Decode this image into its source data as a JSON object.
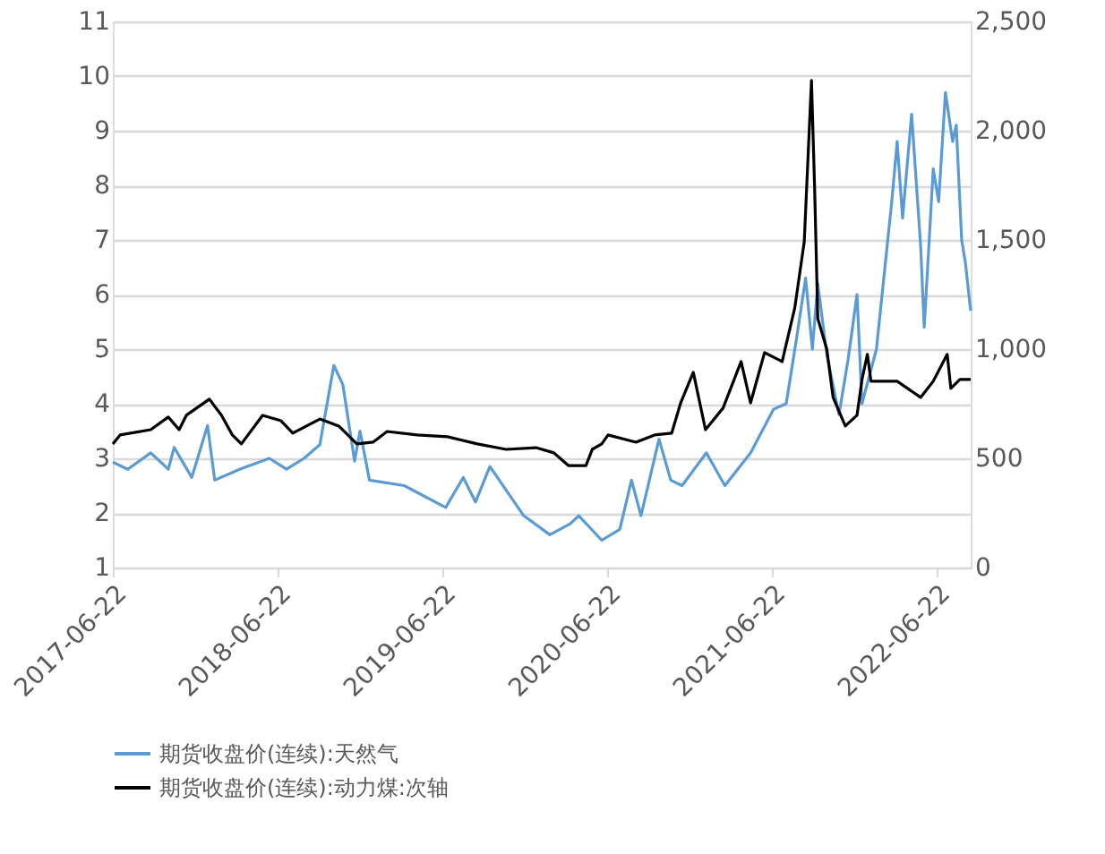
{
  "chart_data": {
    "type": "line",
    "xlim": [
      "2017-06-22",
      "2022-09-06"
    ],
    "xticks": [
      "2017-06-22",
      "2018-06-22",
      "2019-06-22",
      "2020-06-22",
      "2021-06-22",
      "2022-06-22"
    ],
    "ylim": [
      1,
      11
    ],
    "yticks": [
      1,
      2,
      3,
      4,
      5,
      6,
      7,
      8,
      9,
      10,
      11
    ],
    "y2lim": [
      0,
      2500
    ],
    "y2ticks": [
      {
        "value": 0,
        "label": "0"
      },
      {
        "value": 500,
        "label": "500"
      },
      {
        "value": 1000,
        "label": "1,000"
      },
      {
        "value": 1500,
        "label": "1,500"
      },
      {
        "value": 2000,
        "label": "2,000"
      },
      {
        "value": 2500,
        "label": "2,500"
      }
    ],
    "grid": "y",
    "legend": "bottom",
    "series": [
      {
        "name": "期货收盘价(连续):天然气",
        "color": "#5b9bd5",
        "x": [
          "2017-06-22",
          "2017-07-25",
          "2017-09-14",
          "2017-10-23",
          "2017-11-05",
          "2017-12-14",
          "2018-01-18",
          "2018-02-03",
          "2018-03-30",
          "2018-06-04",
          "2018-07-12",
          "2018-08-20",
          "2018-09-24",
          "2018-10-25",
          "2018-11-14",
          "2018-12-10",
          "2018-12-22",
          "2019-01-12",
          "2019-03-30",
          "2019-06-30",
          "2019-08-08",
          "2019-09-04",
          "2019-10-06",
          "2019-12-20",
          "2020-02-16",
          "2020-04-01",
          "2020-04-20",
          "2020-06-10",
          "2020-07-20",
          "2020-08-15",
          "2020-09-05",
          "2020-10-15",
          "2020-11-10",
          "2020-12-05",
          "2021-01-28",
          "2021-03-10",
          "2021-05-06",
          "2021-06-26",
          "2021-07-24",
          "2021-08-16",
          "2021-09-05",
          "2021-09-20",
          "2021-10-02",
          "2021-10-22",
          "2021-11-18",
          "2021-12-08",
          "2021-12-28",
          "2022-01-08",
          "2022-02-09",
          "2022-03-15",
          "2022-03-27",
          "2022-04-08",
          "2022-04-28",
          "2022-05-18",
          "2022-05-26",
          "2022-06-15",
          "2022-06-27",
          "2022-07-12",
          "2022-07-28",
          "2022-08-05",
          "2022-08-17",
          "2022-08-25",
          "2022-09-06"
        ],
        "values": [
          2.93,
          2.8,
          3.1,
          2.8,
          3.2,
          2.65,
          3.6,
          2.6,
          2.8,
          3.0,
          2.8,
          3.0,
          3.25,
          4.7,
          4.35,
          2.95,
          3.5,
          2.6,
          2.5,
          2.1,
          2.65,
          2.2,
          2.85,
          1.95,
          1.6,
          1.8,
          1.95,
          1.5,
          1.7,
          2.6,
          1.95,
          3.35,
          2.6,
          2.5,
          3.1,
          2.5,
          3.1,
          3.9,
          4.0,
          5.2,
          6.3,
          5.0,
          6.2,
          4.9,
          3.8,
          4.8,
          6.0,
          4.0,
          5.0,
          7.7,
          8.8,
          7.4,
          9.3,
          6.9,
          5.4,
          8.3,
          7.7,
          9.7,
          8.8,
          9.1,
          7.0,
          6.6,
          5.7
        ]
      },
      {
        "name": "期货收盘价(连续):动力煤:次轴",
        "color": "#000000",
        "axis": "y2",
        "x": [
          "2017-06-22",
          "2017-07-08",
          "2017-09-14",
          "2017-10-23",
          "2017-11-16",
          "2017-12-02",
          "2018-01-22",
          "2018-02-18",
          "2018-03-14",
          "2018-04-03",
          "2018-05-20",
          "2018-06-30",
          "2018-07-26",
          "2018-09-24",
          "2018-11-05",
          "2018-12-15",
          "2019-01-20",
          "2019-02-20",
          "2019-04-28",
          "2019-07-04",
          "2019-09-08",
          "2019-11-11",
          "2020-01-16",
          "2020-02-25",
          "2020-03-28",
          "2020-05-06",
          "2020-05-20",
          "2020-06-10",
          "2020-06-24",
          "2020-08-25",
          "2020-10-05",
          "2020-11-12",
          "2020-12-02",
          "2020-12-30",
          "2021-01-26",
          "2021-03-06",
          "2021-04-15",
          "2021-05-06",
          "2021-06-06",
          "2021-07-15",
          "2021-08-12",
          "2021-09-02",
          "2021-09-18",
          "2021-09-25",
          "2021-10-02",
          "2021-10-22",
          "2021-11-05",
          "2021-12-02",
          "2021-12-28",
          "2022-01-08",
          "2022-01-20",
          "2022-01-28",
          "2022-03-27",
          "2022-05-18",
          "2022-06-15",
          "2022-07-16",
          "2022-07-24",
          "2022-08-13",
          "2022-09-06"
        ],
        "values": [
          566,
          607,
          631,
          689,
          631,
          697,
          771,
          697,
          607,
          566,
          697,
          672,
          615,
          680,
          648,
          566,
          574,
          623,
          607,
          599,
          566,
          541,
          549,
          525,
          467,
          467,
          541,
          566,
          607,
          574,
          607,
          615,
          754,
          894,
          631,
          730,
          943,
          754,
          984,
          943,
          1189,
          1492,
          2230,
          1738,
          1140,
          1000,
          779,
          648,
          697,
          861,
          976,
          853,
          853,
          779,
          853,
          976,
          820,
          861,
          861
        ]
      }
    ]
  }
}
